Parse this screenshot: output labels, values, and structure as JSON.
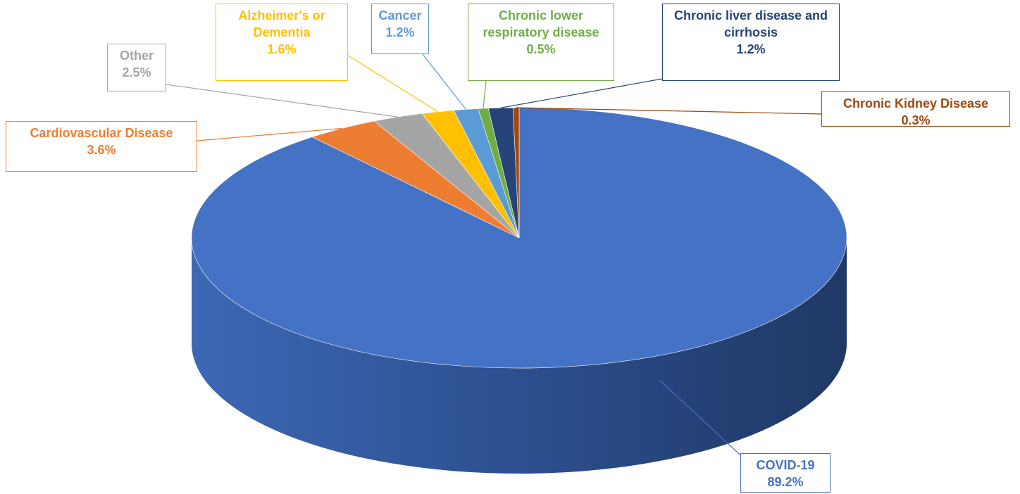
{
  "chart_data": {
    "type": "pie",
    "categories": [
      "COVID-19",
      "Cardiovascular Disease",
      "Other",
      "Alzheimer's or Dementia",
      "Cancer",
      "Chronic lower respiratory disease",
      "Chronic liver disease and cirrhosis",
      "Chronic Kidney Disease"
    ],
    "values": [
      89.2,
      3.6,
      2.5,
      1.6,
      1.2,
      0.5,
      1.2,
      0.3
    ],
    "value_labels": [
      "89.2%",
      "3.6%",
      "2.5%",
      "1.6%",
      "1.2%",
      "0.5%",
      "1.2%",
      "0.3%"
    ],
    "colors": [
      "#4472c4",
      "#ed7d31",
      "#a5a5a5",
      "#ffc000",
      "#5b9bd5",
      "#70ad47",
      "#264478",
      "#9e480e"
    ]
  }
}
